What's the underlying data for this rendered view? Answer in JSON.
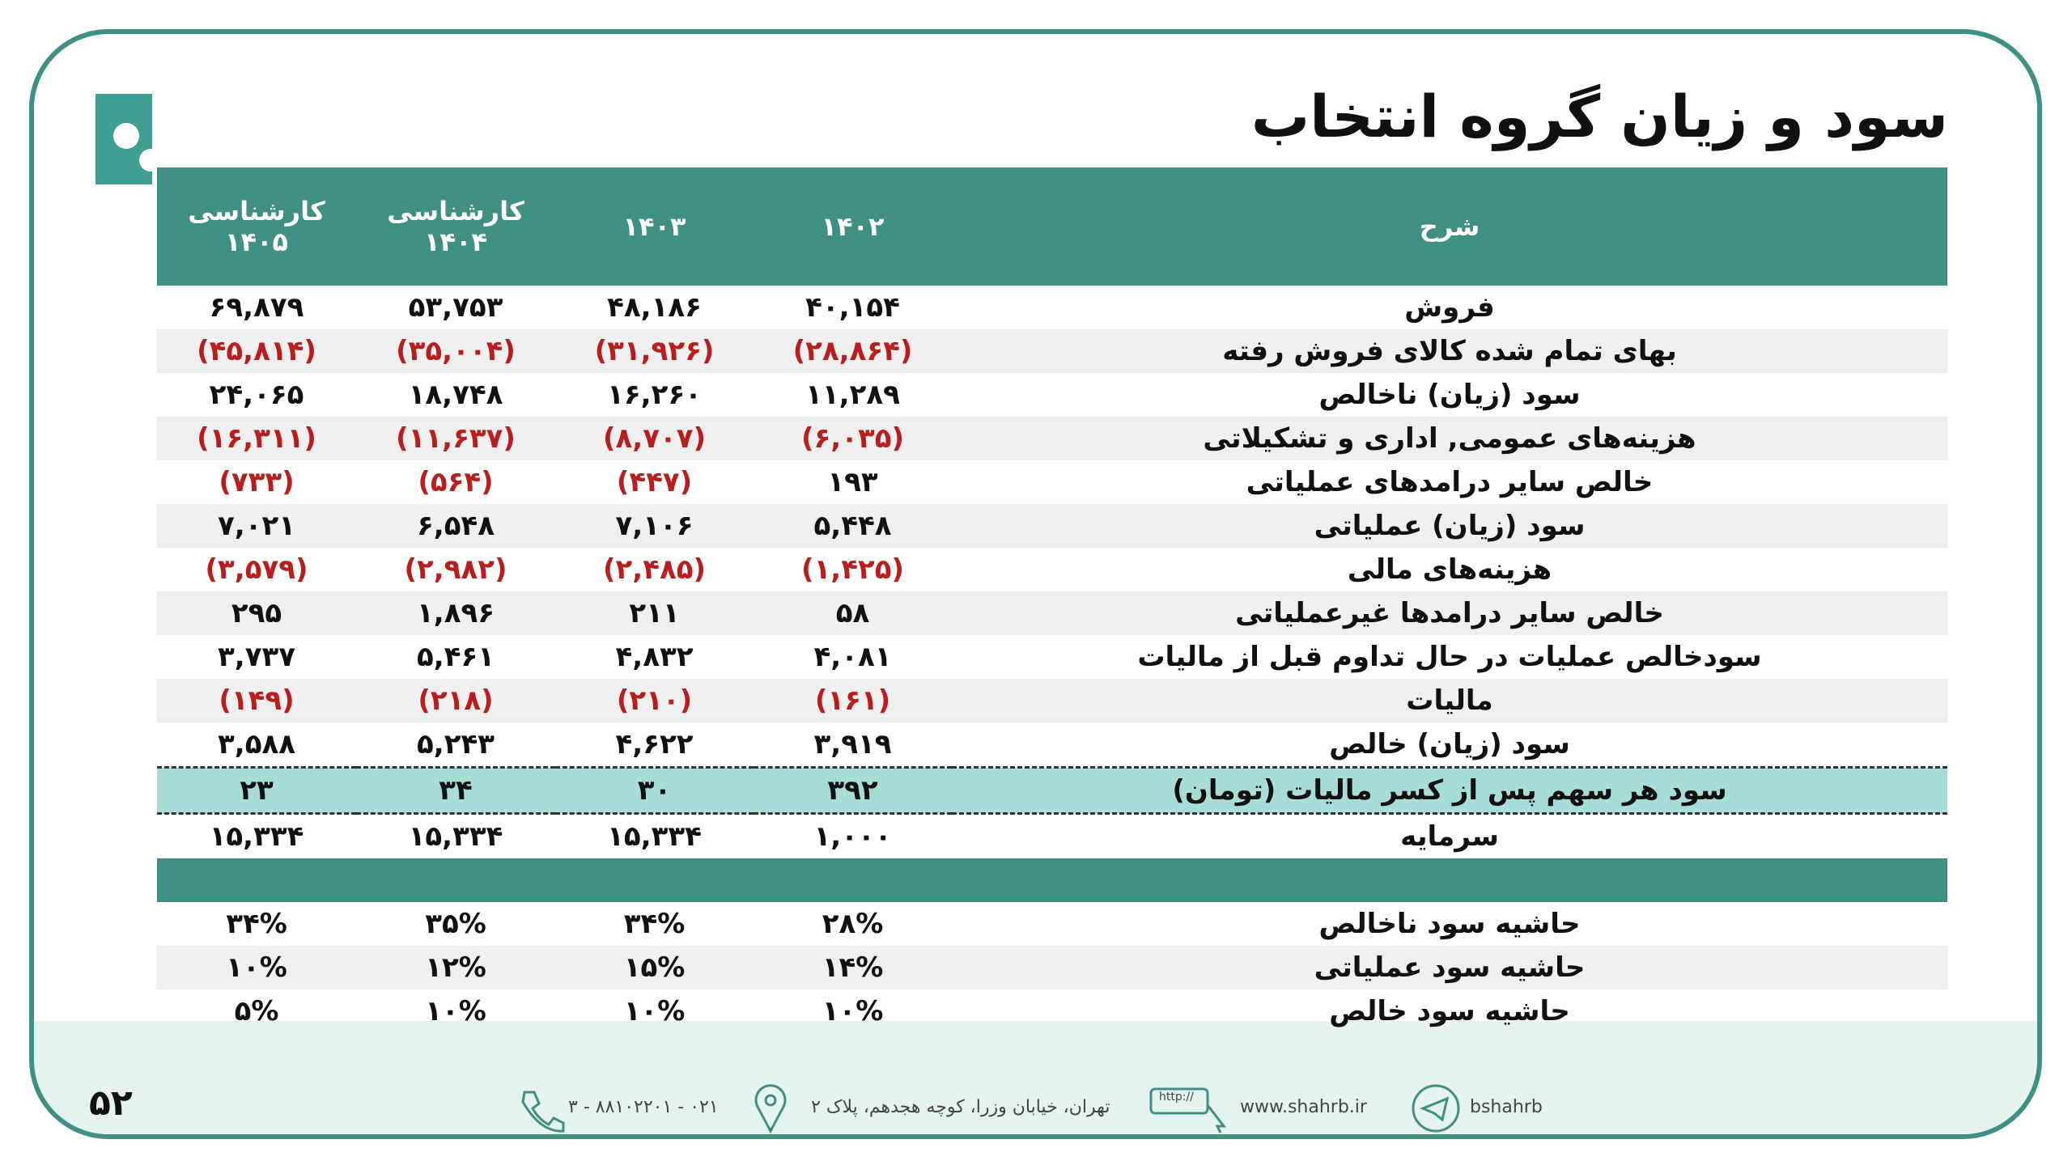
{
  "header": {
    "title": "سود و زیان گروه انتخاب"
  },
  "table": {
    "columns": [
      "شرح",
      "۱۴۰۲",
      "۱۴۰۳",
      "کارشناسی ۱۴۰۴",
      "کارشناسی ۱۴۰۵"
    ],
    "rows": [
      [
        "فروش",
        "۴۰,۱۵۴",
        "۴۸,۱۸۶",
        "۵۳,۷۵۳",
        "۶۹,۸۷۹"
      ],
      [
        "بهای تمام شده کالای فروش رفته",
        "(۲۸,۸۶۴)",
        "(۳۱,۹۲۶)",
        "(۳۵,۰۰۴)",
        "(۴۵,۸۱۴)"
      ],
      [
        "سود (زیان) ناخالص",
        "۱۱,۲۸۹",
        "۱۶,۲۶۰",
        "۱۸,۷۴۸",
        "۲۴,۰۶۵"
      ],
      [
        "هزینه‌های عمومی, اداری و تشکیلاتی",
        "(۶,۰۳۵)",
        "(۸,۷۰۷)",
        "(۱۱,۶۳۷)",
        "(۱۶,۳۱۱)"
      ],
      [
        "خالص سایر درامدهای  عملیاتی",
        "۱۹۳",
        "(۴۴۷)",
        "(۵۶۴)",
        "(۷۳۳)"
      ],
      [
        "سود (زیان) عملیاتی",
        "۵,۴۴۸",
        "۷,۱۰۶",
        "۶,۵۴۸",
        "۷,۰۲۱"
      ],
      [
        "هزینه‌های مالی",
        "(۱,۴۲۵)",
        "(۲,۴۸۵)",
        "(۲,۹۸۲)",
        "(۳,۵۷۹)"
      ],
      [
        "خالص سایر درامدها غیرعملیاتی",
        "۵۸",
        "۲۱۱",
        "۱,۸۹۶",
        "۲۹۵"
      ],
      [
        "سودخالص عملیات در حال تداوم قبل از مالیات",
        "۴,۰۸۱",
        "۴,۸۳۲",
        "۵,۴۶۱",
        "۳,۷۳۷"
      ],
      [
        "مالیات",
        "(۱۶۱)",
        "(۲۱۰)",
        "(۲۱۸)",
        "(۱۴۹)"
      ],
      [
        "سود (زیان) خالص",
        "۳,۹۱۹",
        "۴,۶۲۲",
        "۵,۲۴۳",
        "۳,۵۸۸"
      ],
      [
        "سود هر سهم پس از کسر مالیات (تومان)",
        "۳۹۲",
        "۳۰",
        "۳۴",
        "۲۳"
      ],
      [
        "سرمایه",
        "۱,۰۰۰",
        "۱۵,۳۳۴",
        "۱۵,۳۳۴",
        "۱۵,۳۳۴"
      ]
    ],
    "margin_rows": [
      [
        "حاشیه سود ناخالص",
        "۲۸%",
        "۳۴%",
        "۳۵%",
        "۳۴%"
      ],
      [
        "حاشیه سود عملیاتی",
        "۱۴%",
        "۱۵%",
        "۱۲%",
        "۱۰%"
      ],
      [
        "حاشیه سود خالص",
        "۱۰%",
        "۱۰%",
        "۱۰%",
        "۵%"
      ]
    ]
  },
  "footer": {
    "page": "۵۲",
    "phone": "۰۲۱ - ۸۸۱۰۲۲۰۱ - ۳",
    "address": "تهران، خیابان وزرا، کوچه هجدهم، پلاک ۲",
    "http": "http://",
    "website": "www.shahrb.ir",
    "telegram": "bshahrb"
  }
}
